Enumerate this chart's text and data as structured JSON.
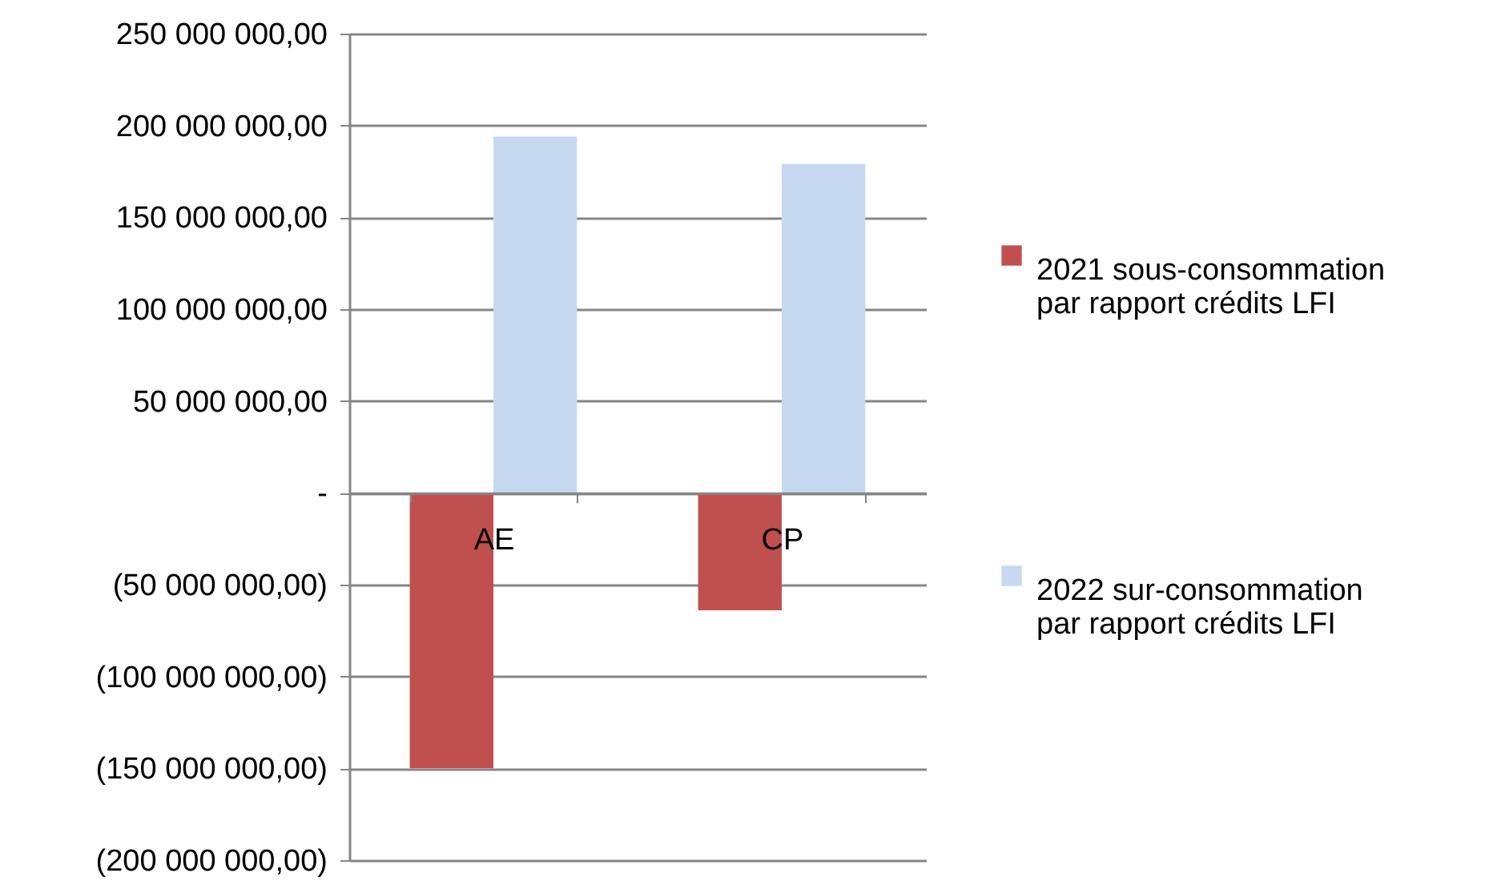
{
  "chart_data": {
    "type": "bar",
    "categories": [
      "AE",
      "CP"
    ],
    "series": [
      {
        "name": "2021 sous-consommation par rapport crédits LFI",
        "color": "#c0504d",
        "values": [
          -150000000,
          -64000000
        ]
      },
      {
        "name": "2022 sur-consommation par rapport crédits LFI",
        "color": "#c6d9f1",
        "values": [
          194000000,
          179000000
        ]
      }
    ],
    "ylim": [
      -200000000,
      250000000
    ],
    "yticks": [
      {
        "value": -200000000,
        "label": "(200 000 000,00)"
      },
      {
        "value": -150000000,
        "label": "(150 000 000,00)"
      },
      {
        "value": -100000000,
        "label": "(100 000 000,00)"
      },
      {
        "value": -50000000,
        "label": "(50 000 000,00)"
      },
      {
        "value": 0,
        "label": "-"
      },
      {
        "value": 50000000,
        "label": "50 000 000,00"
      },
      {
        "value": 100000000,
        "label": "100 000 000,00"
      },
      {
        "value": 150000000,
        "label": "150 000 000,00"
      },
      {
        "value": 200000000,
        "label": "200 000 000,00"
      },
      {
        "value": 250000000,
        "label": "250 000 000,00"
      }
    ],
    "grid": "y",
    "legend": "right"
  }
}
